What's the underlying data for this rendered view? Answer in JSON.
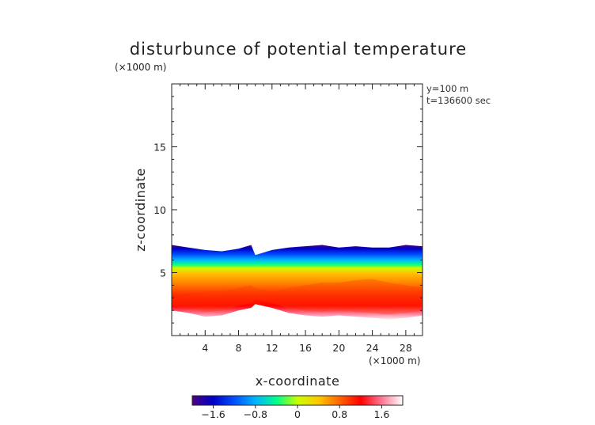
{
  "chart_data": {
    "type": "heatmap",
    "title": "disturbunce of potential temperature",
    "xlabel": "x-coordinate",
    "ylabel": "z-coordinate",
    "x_unit": "(×1000 m)",
    "y_unit": "(×1000 m)",
    "annotations": [
      "y=100 m",
      "t=136600 sec"
    ],
    "xlim": [
      0,
      30
    ],
    "ylim": [
      0,
      20
    ],
    "x_ticks": [
      4,
      8,
      12,
      16,
      20,
      24,
      28
    ],
    "y_ticks": [
      5,
      10,
      15
    ],
    "colorbar": {
      "range": [
        -2,
        2
      ],
      "ticks": [
        -1.6,
        -0.8,
        0,
        0.8,
        1.6
      ],
      "tick_labels": [
        "−1.6",
        "−0.8",
        "0",
        "0.8",
        "1.6"
      ],
      "colors": [
        "#4b0082",
        "#0000c8",
        "#0050ff",
        "#00b4ff",
        "#00ff8c",
        "#c8ff00",
        "#ffc800",
        "#ff6400",
        "#ff0000",
        "#ff7896",
        "#ffffff"
      ]
    },
    "field": {
      "description_bands_x": [
        0,
        2,
        4,
        6,
        8,
        9.5,
        10,
        12,
        14,
        16,
        18,
        20,
        22,
        24,
        26,
        28,
        30
      ],
      "top_edge_z": [
        7.2,
        7.0,
        6.8,
        6.7,
        6.9,
        7.2,
        6.4,
        6.8,
        7.0,
        7.1,
        7.2,
        7.0,
        7.1,
        7.0,
        7.0,
        7.2,
        7.1
      ],
      "bottom_edge_z": [
        2.0,
        1.8,
        1.5,
        1.6,
        2.0,
        2.2,
        2.5,
        2.2,
        1.8,
        1.6,
        1.5,
        1.6,
        1.5,
        1.4,
        1.3,
        1.4,
        1.6
      ],
      "warm_core_z": [
        3.0,
        3.2,
        3.5,
        3.5,
        3.8,
        4.0,
        3.8,
        3.5,
        3.8,
        4.0,
        4.2,
        4.2,
        4.4,
        4.5,
        4.2,
        4.0,
        3.8
      ]
    }
  }
}
